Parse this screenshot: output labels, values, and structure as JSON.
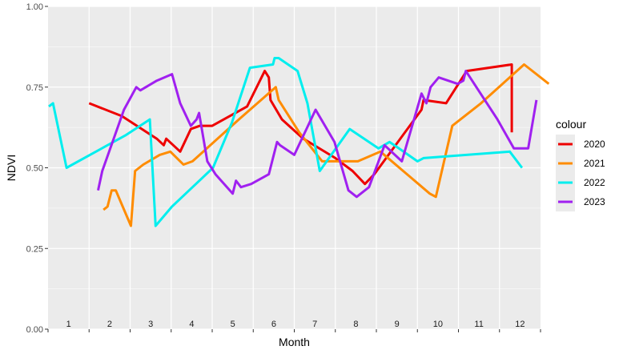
{
  "chart_data": {
    "type": "line",
    "title": "",
    "xlabel": "Month",
    "ylabel": "NDVI",
    "ylim": [
      0,
      1
    ],
    "xlim": [
      0.5,
      12.5
    ],
    "y_ticks": [
      "0.00",
      "0.25",
      "0.50",
      "0.75",
      "1.00"
    ],
    "y_tick_values": [
      0,
      0.25,
      0.5,
      0.75,
      1.0
    ],
    "x_ticks": [
      "1",
      "2",
      "3",
      "4",
      "5",
      "6",
      "7",
      "8",
      "9",
      "10",
      "11",
      "12"
    ],
    "grid": true,
    "legend": {
      "title": "colour",
      "position": "right"
    },
    "series": [
      {
        "name": "2020",
        "color": "#ee0000",
        "x": [
          1.5,
          2.3,
          3.15,
          3.32,
          3.38,
          3.72,
          3.98,
          4.2,
          4.5,
          5.35,
          5.78,
          5.88,
          5.92,
          6.2,
          6.72,
          7.5,
          7.92,
          8.22,
          8.45,
          9.6,
          9.65,
          10.2,
          10.7,
          11.8,
          11.8
        ],
        "y": [
          0.7,
          0.66,
          0.59,
          0.57,
          0.59,
          0.55,
          0.62,
          0.63,
          0.63,
          0.69,
          0.8,
          0.78,
          0.71,
          0.65,
          0.59,
          0.53,
          0.49,
          0.45,
          0.48,
          0.68,
          0.71,
          0.7,
          0.8,
          0.82,
          0.61
        ]
      },
      {
        "name": "2021",
        "color": "#ff8c00",
        "x": [
          1.85,
          1.95,
          2.05,
          2.15,
          2.52,
          2.62,
          2.82,
          3.22,
          3.48,
          3.72,
          3.8,
          4.02,
          5.15,
          6.05,
          6.12,
          6.62,
          7.18,
          8.05,
          8.6,
          9.8,
          9.95,
          10.35,
          11.05,
          12.1,
          12.7
        ],
        "y": [
          0.37,
          0.38,
          0.43,
          0.43,
          0.32,
          0.49,
          0.51,
          0.54,
          0.55,
          0.52,
          0.51,
          0.52,
          0.65,
          0.75,
          0.71,
          0.61,
          0.52,
          0.52,
          0.55,
          0.42,
          0.41,
          0.63,
          0.7,
          0.82,
          0.76
        ]
      },
      {
        "name": "2022",
        "color": "#00eeee",
        "x": [
          0.52,
          0.62,
          0.95,
          2.38,
          2.98,
          3.12,
          3.52,
          4.02,
          4.52,
          4.98,
          5.42,
          5.98,
          6.02,
          6.12,
          6.58,
          6.82,
          7.12,
          7.85,
          8.55,
          8.82,
          9.05,
          9.5,
          9.65,
          11.75,
          12.05
        ],
        "y": [
          0.69,
          0.7,
          0.5,
          0.6,
          0.65,
          0.32,
          0.38,
          0.44,
          0.5,
          0.64,
          0.81,
          0.82,
          0.84,
          0.84,
          0.8,
          0.7,
          0.49,
          0.62,
          0.56,
          0.58,
          0.56,
          0.52,
          0.53,
          0.55,
          0.5
        ]
      },
      {
        "name": "2023",
        "color": "#a020f0",
        "x": [
          1.72,
          1.82,
          2.35,
          2.65,
          2.75,
          3.15,
          3.52,
          3.72,
          3.98,
          4.12,
          4.18,
          4.38,
          4.58,
          5.0,
          5.08,
          5.2,
          5.45,
          5.88,
          6.08,
          6.15,
          6.5,
          7.02,
          7.48,
          7.82,
          8.02,
          8.32,
          8.7,
          9.12,
          9.6,
          9.72,
          9.82,
          10.02,
          10.48,
          10.62,
          10.68,
          11.45,
          11.85,
          11.92,
          12.2,
          12.4
        ],
        "y": [
          0.43,
          0.49,
          0.68,
          0.75,
          0.74,
          0.77,
          0.79,
          0.7,
          0.63,
          0.65,
          0.67,
          0.52,
          0.48,
          0.42,
          0.46,
          0.44,
          0.45,
          0.48,
          0.58,
          0.57,
          0.54,
          0.68,
          0.58,
          0.43,
          0.41,
          0.44,
          0.57,
          0.52,
          0.73,
          0.7,
          0.75,
          0.78,
          0.76,
          0.77,
          0.8,
          0.65,
          0.56,
          0.56,
          0.56,
          0.71
        ]
      }
    ]
  }
}
